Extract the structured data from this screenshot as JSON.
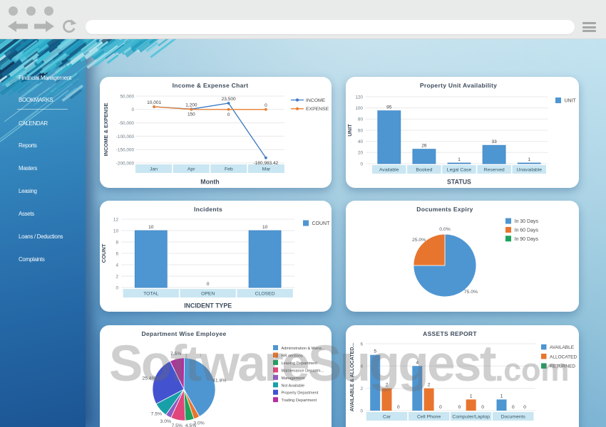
{
  "browser": {
    "window_dots": 3,
    "url_value": "",
    "back_icon": "back-arrow",
    "forward_icon": "forward-arrow",
    "refresh_icon": "refresh-circular-arrow",
    "menu_icon": "hamburger-menu"
  },
  "sidebar": {
    "items": [
      {
        "label": "Financial Management"
      },
      {
        "label": "BOOKMARKS",
        "divider_below": true
      },
      {
        "label": "CALENDAR"
      },
      {
        "label": "Reports"
      },
      {
        "label": "Masters"
      },
      {
        "label": "Leasing"
      },
      {
        "label": "Assets"
      },
      {
        "label": "Loans / Deductions"
      },
      {
        "label": "Complaints"
      }
    ]
  },
  "watermark": {
    "text": "SoftwareSuggest",
    "suffix": ".com"
  },
  "colors": {
    "blue": "#4e96d2",
    "blue_border": "#3e86c6",
    "orange": "#e8752e",
    "orange_border": "#d96a28",
    "green": "#1da35e",
    "pink": "#e0457b",
    "purple": "#8e5bc4",
    "teal": "#17a0a8",
    "indigo": "#4353d0",
    "magenta": "#b3309e",
    "line_blue": "#3a78c2",
    "line_orange": "#e87e2e",
    "strip_bg": "#c9e6f2",
    "grid": "#e9e9e9",
    "tick_text": "#6b7a85",
    "value_text": "#3c3c3c",
    "legend_text": "#4a4a4a",
    "strip_text": "#35586b",
    "axis_title": "#3d4c5c"
  },
  "chart_data": [
    {
      "type": "line",
      "title": "Income & Expense Chart",
      "xlabel": "Month",
      "ylabel": "INCOME & EXPENSE",
      "categories": [
        "Jan",
        "Apr",
        "Feb",
        "Mar"
      ],
      "ylim": [
        -200000,
        50000
      ],
      "yticks": [
        "50,000",
        "0",
        "-50,000",
        "-100,000",
        "-150,000",
        "-200,000"
      ],
      "ytick_values": [
        50000,
        0,
        -50000,
        -100000,
        -150000,
        -200000
      ],
      "series": [
        {
          "name": "INCOME",
          "color": "#3a78c2",
          "values": [
            10001,
            1200,
            23500,
            -180983.42
          ],
          "labels": [
            "10,001",
            "1,200",
            "23,500",
            "-180,983.42"
          ],
          "label_pos": [
            "above",
            "above",
            "above",
            "below"
          ]
        },
        {
          "name": "EXPENSE",
          "color": "#e87e2e",
          "values": [
            10001,
            150,
            0,
            0
          ],
          "labels": [
            "",
            "150",
            "0",
            "0"
          ],
          "label_pos": [
            "above",
            "below",
            "below",
            "above"
          ]
        }
      ],
      "legend_position": "right"
    },
    {
      "type": "bar",
      "title": "Property Unit Availability",
      "xlabel": "STATUS",
      "ylabel": "UNIT",
      "categories": [
        "Available",
        "Booked",
        "Legal Case",
        "Reserved",
        "Unavailable"
      ],
      "values": [
        95,
        26,
        1,
        33,
        1
      ],
      "value_labels": [
        "95",
        "26",
        "1",
        "33",
        "1"
      ],
      "ylim": [
        0,
        120
      ],
      "yticks": [
        "120",
        "100",
        "80",
        "60",
        "40",
        "20",
        "0"
      ],
      "ytick_values": [
        120,
        100,
        80,
        60,
        40,
        20,
        0
      ],
      "series_name": "UNIT",
      "bar_color": "#4e96d2",
      "legend_position": "right"
    },
    {
      "type": "bar",
      "title": "Incidents",
      "xlabel": "INCIDENT TYPE",
      "ylabel": "COUNT",
      "categories": [
        "TOTAL",
        "OPEN",
        "CLOSED"
      ],
      "values": [
        10,
        0,
        10
      ],
      "value_labels": [
        "10",
        "0",
        "10"
      ],
      "ylim": [
        0,
        12
      ],
      "yticks": [
        "12",
        "10",
        "8",
        "6",
        "4",
        "2",
        "0"
      ],
      "ytick_values": [
        12,
        10,
        8,
        6,
        4,
        2,
        0
      ],
      "series_name": "COUNT",
      "bar_color": "#4e96d2",
      "legend_position": "right"
    },
    {
      "type": "pie",
      "title": "Documents Expiry",
      "slices": [
        {
          "name": "In 30 Days",
          "value": 75.0,
          "label": "75.0%",
          "color": "#4e96d2"
        },
        {
          "name": "In 60 Days",
          "value": 25.0,
          "label": "25.0%",
          "color": "#e8752e"
        },
        {
          "name": "In 90 Days",
          "value": 0.0,
          "label": "0.0%",
          "color": "#1da35e"
        }
      ],
      "legend_position": "right"
    },
    {
      "type": "pie",
      "title": "Department Wise Employee",
      "slices": [
        {
          "name": "Administration & Mana...",
          "value": 41.8,
          "label": "41.8%",
          "color": "#4e96d2"
        },
        {
          "name": "HR sections",
          "value": 3.0,
          "label": "3.0%",
          "color": "#e8752e"
        },
        {
          "name": "Leasing Department",
          "value": 4.5,
          "label": "4.5%",
          "color": "#1da35e"
        },
        {
          "name": "Maintenance Departm...",
          "value": 7.5,
          "label": "7.5%",
          "color": "#e0457b"
        },
        {
          "name": "Management",
          "value": 3.0,
          "label": "3.0%",
          "color": "#8e5bc4"
        },
        {
          "name": "Not Available",
          "value": 7.5,
          "label": "7.5%",
          "color": "#17a0a8"
        },
        {
          "name": "Property Department",
          "value": 25.4,
          "label": "25.4%",
          "color": "#4353d0"
        },
        {
          "name": "Trading Department",
          "value": 7.5,
          "label": "7.5%",
          "color": "#b3309e"
        }
      ],
      "legend_position": "right"
    },
    {
      "type": "grouped_bar",
      "title": "ASSETS REPORT",
      "ylabel": "AVAILABLE & ALLOCATED...",
      "categories": [
        "Car",
        "Cell Phone",
        "Computer/Laptop",
        "Documents"
      ],
      "series": [
        {
          "name": "AVAILABLE",
          "color": "#4e96d2",
          "values": [
            5,
            4,
            0,
            1
          ],
          "labels": [
            "5",
            "4",
            "0",
            "1"
          ]
        },
        {
          "name": "ALLOCATED",
          "color": "#e8752e",
          "values": [
            2,
            2,
            1,
            0
          ],
          "labels": [
            "2",
            "2",
            "1",
            "0"
          ]
        },
        {
          "name": "RETURNED",
          "color": "#1da35e",
          "values": [
            0,
            0,
            0,
            0
          ],
          "labels": [
            "0",
            "0",
            "0",
            "0"
          ]
        }
      ],
      "ylim": [
        0,
        6
      ],
      "yticks": [
        "6",
        "4",
        "2",
        "0"
      ],
      "ytick_values": [
        6,
        4,
        2,
        0
      ],
      "legend_position": "right"
    }
  ]
}
